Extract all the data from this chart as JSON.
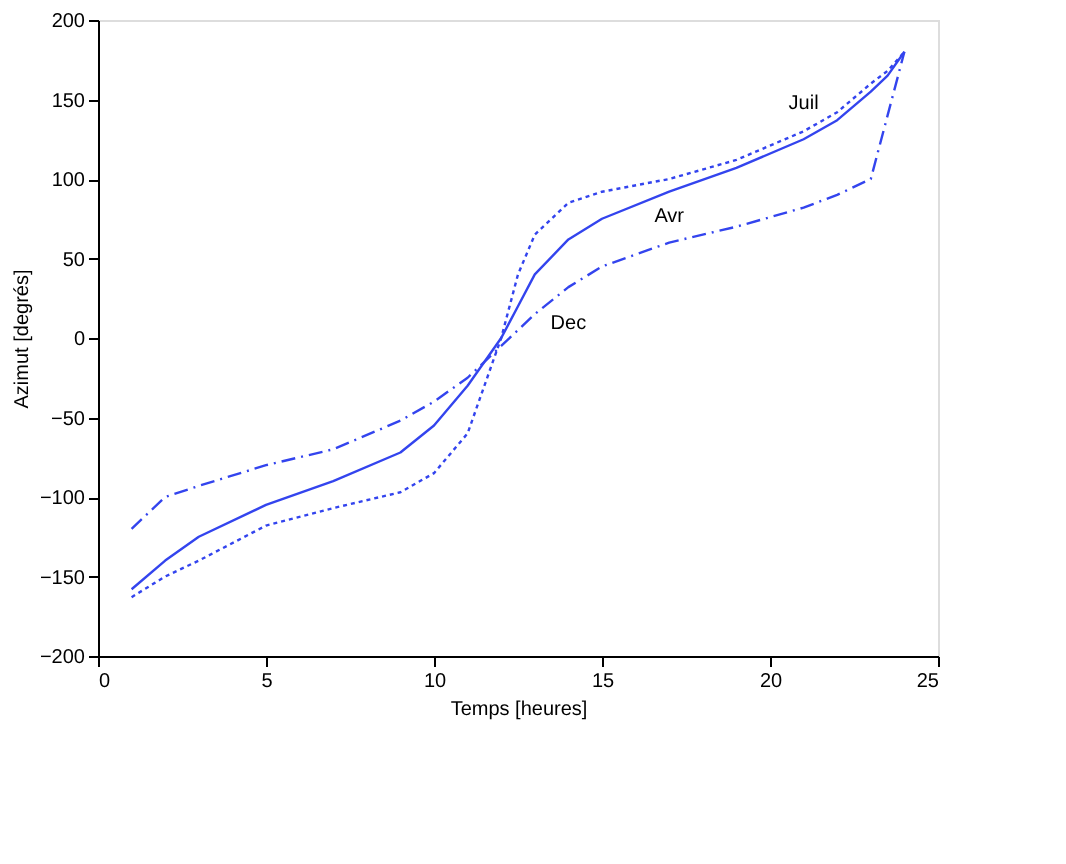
{
  "chart_data": {
    "type": "line",
    "xlabel": "Temps [heures]",
    "ylabel": "Azimut [degrés]",
    "xlim": [
      0,
      25
    ],
    "xticks": [
      0,
      5,
      10,
      15,
      20,
      25
    ],
    "ylim": [
      -200,
      200
    ],
    "yticks": [
      -200,
      -150,
      -100,
      -50,
      0,
      50,
      100,
      150,
      200
    ],
    "grid": false,
    "legend": false,
    "marker": "none",
    "x": [
      1,
      2,
      3,
      5,
      7,
      9,
      10,
      11,
      12,
      12.5,
      13,
      14,
      15,
      17,
      19,
      21,
      22,
      23,
      23.5,
      24
    ],
    "series": [
      {
        "name": "Juil",
        "color": "#3344ee",
        "line_style": "dotted",
        "values": [
          -163,
          -150,
          -140,
          -118,
          -107,
          -97,
          -85,
          -60,
          0,
          40,
          65,
          85,
          92,
          100,
          112,
          130,
          142,
          160,
          168,
          180
        ]
      },
      {
        "name": "Avr",
        "color": "#3344ee",
        "line_style": "solid",
        "values": [
          -158,
          -140,
          -125,
          -105,
          -90,
          -72,
          -55,
          -30,
          0,
          20,
          40,
          62,
          75,
          92,
          107,
          125,
          137,
          155,
          165,
          180
        ]
      },
      {
        "name": "Dec",
        "color": "#3344ee",
        "line_style": "dashdot",
        "values": [
          -120,
          -100,
          -93,
          -80,
          -70,
          -52,
          -40,
          -25,
          -5,
          5,
          15,
          32,
          45,
          60,
          70,
          82,
          90,
          100,
          140,
          180
        ]
      }
    ]
  }
}
